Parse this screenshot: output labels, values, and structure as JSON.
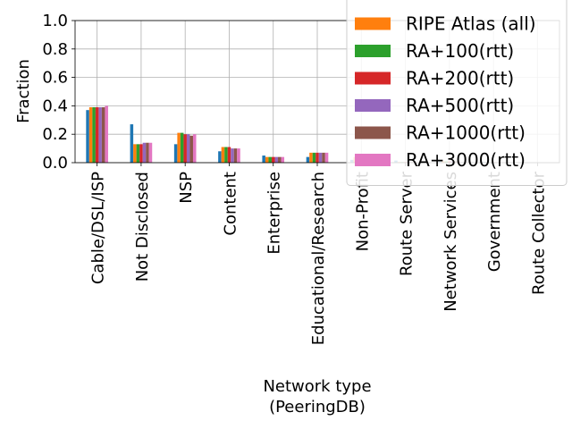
{
  "chart_data": {
    "type": "bar",
    "ylabel": "Fraction",
    "xlabel_lines": [
      "Network type",
      "(PeeringDB)"
    ],
    "ylim": [
      0,
      1.0
    ],
    "yticks": [
      "0.0",
      "0.2",
      "0.4",
      "0.6",
      "0.8",
      "1.0"
    ],
    "grid": true,
    "legend_position": "top-right",
    "categories": [
      "Cable/DSL/ISP",
      "Not Disclosed",
      "NSP",
      "Content",
      "Enterprise",
      "Educational/Research",
      "Non-Profit",
      "Route Server",
      "Network Services",
      "Government",
      "Route Collector"
    ],
    "series": [
      {
        "name": "",
        "color": "#1f77b4",
        "values": [
          0.37,
          0.27,
          0.13,
          0.08,
          0.05,
          0.04,
          0.02,
          0.015,
          0.015,
          0.005,
          0.0
        ]
      },
      {
        "name": "RIPE Atlas (all)",
        "color": "#ff7f0e",
        "values": [
          0.39,
          0.13,
          0.21,
          0.11,
          0.04,
          0.07,
          0.04,
          0.005,
          0.01,
          0.003,
          0.0
        ]
      },
      {
        "name": "RA+100(rtt)",
        "color": "#2ca02c",
        "values": [
          0.39,
          0.13,
          0.21,
          0.11,
          0.04,
          0.07,
          0.04,
          0.005,
          0.01,
          0.003,
          0.0
        ]
      },
      {
        "name": "RA+200(rtt)",
        "color": "#d62728",
        "values": [
          0.39,
          0.13,
          0.2,
          0.11,
          0.04,
          0.07,
          0.04,
          0.005,
          0.01,
          0.003,
          0.0
        ]
      },
      {
        "name": "RA+500(rtt)",
        "color": "#9467bd",
        "values": [
          0.39,
          0.14,
          0.2,
          0.1,
          0.04,
          0.07,
          0.04,
          0.005,
          0.01,
          0.003,
          0.0
        ]
      },
      {
        "name": "RA+1000(rtt)",
        "color": "#8c564b",
        "values": [
          0.39,
          0.14,
          0.19,
          0.1,
          0.04,
          0.07,
          0.04,
          0.005,
          0.01,
          0.003,
          0.0
        ]
      },
      {
        "name": "RA+3000(rtt)",
        "color": "#e377c2",
        "values": [
          0.4,
          0.14,
          0.2,
          0.1,
          0.04,
          0.07,
          0.04,
          0.005,
          0.01,
          0.003,
          0.0
        ]
      }
    ]
  }
}
